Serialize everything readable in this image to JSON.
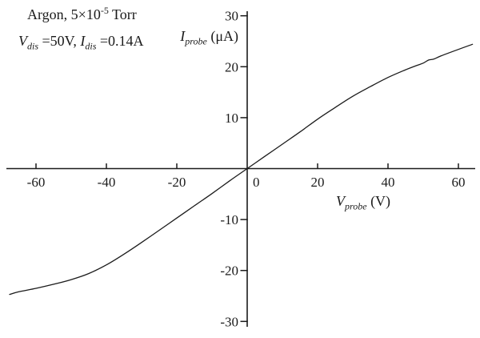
{
  "header": {
    "line1_prefix": "Argon, 5×10",
    "line1_exponent": "-5",
    "line1_suffix": " Torr",
    "line2_var1": "V",
    "line2_sub1": "dis",
    "line2_mid": " =50V, ",
    "line2_var2": "I",
    "line2_sub2": "dis",
    "line2_end": " =0.14A"
  },
  "chart_data": {
    "type": "line",
    "xlabel": {
      "var": "V",
      "sub": "probe",
      "unit": " (V)"
    },
    "ylabel": {
      "var": "I",
      "sub": "probe",
      "unit": " (μA)"
    },
    "xlim": [
      -68,
      66
    ],
    "ylim": [
      -31.5,
      31.5
    ],
    "grid": false,
    "x_ticks": [
      -60,
      -40,
      -20,
      20,
      40,
      60
    ],
    "x_tick_labels": [
      "-60",
      "-40",
      "-20",
      "20",
      "40",
      "60"
    ],
    "zero_label": "0",
    "y_ticks": [
      30,
      20,
      10,
      -10,
      -20,
      -30
    ],
    "y_tick_labels": [
      "30",
      "20",
      "10",
      "-10",
      "-20",
      "-30"
    ],
    "series": [
      {
        "name": "probe-current-curve",
        "x": [
          -67.5,
          -65,
          -60,
          -55,
          -50,
          -45,
          -40,
          -35,
          -30,
          -25,
          -20,
          -15,
          -10,
          -5,
          0,
          5,
          10,
          15,
          20,
          25,
          30,
          35,
          40,
          45,
          48,
          50,
          51.5,
          53,
          55,
          60,
          64
        ],
        "y": [
          -24.7,
          -24.2,
          -23.5,
          -22.7,
          -21.8,
          -20.6,
          -18.9,
          -16.8,
          -14.5,
          -12.1,
          -9.7,
          -7.3,
          -4.9,
          -2.4,
          0,
          2.4,
          4.8,
          7.2,
          9.7,
          12.0,
          14.2,
          16.1,
          17.9,
          19.4,
          20.2,
          20.7,
          21.3,
          21.5,
          22.1,
          23.4,
          24.4
        ]
      }
    ]
  },
  "colors": {
    "ink": "#1b1b1b",
    "paper": "#ffffff"
  }
}
